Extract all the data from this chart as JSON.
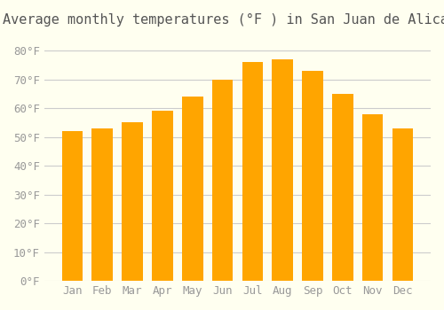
{
  "title": "Average monthly temperatures (°F ) in San Juan de Alicante",
  "months": [
    "Jan",
    "Feb",
    "Mar",
    "Apr",
    "May",
    "Jun",
    "Jul",
    "Aug",
    "Sep",
    "Oct",
    "Nov",
    "Dec"
  ],
  "values": [
    52,
    53,
    55,
    59,
    64,
    70,
    76,
    77,
    73,
    65,
    58,
    53
  ],
  "bar_color": "#FFA500",
  "bar_color_gradient_top": "#FFB300",
  "background_color": "#FFFFF0",
  "grid_color": "#CCCCCC",
  "text_color": "#999999",
  "ylim": [
    0,
    85
  ],
  "yticks": [
    0,
    10,
    20,
    30,
    40,
    50,
    60,
    70,
    80
  ],
  "ytick_labels": [
    "0°F",
    "10°F",
    "20°F",
    "30°F",
    "40°F",
    "50°F",
    "60°F",
    "70°F",
    "80°F"
  ],
  "title_fontsize": 11,
  "tick_fontsize": 9
}
